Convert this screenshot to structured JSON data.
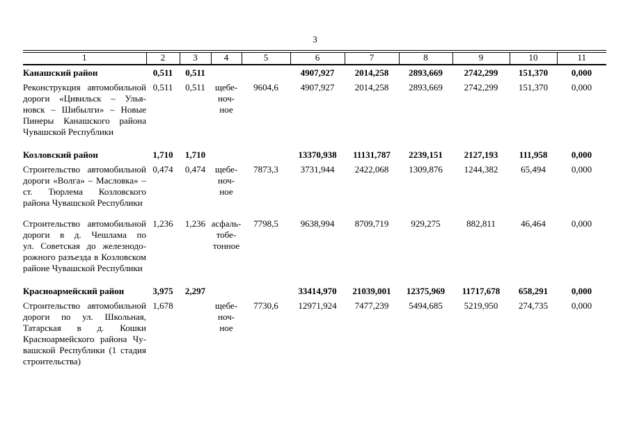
{
  "page": {
    "number": "3"
  },
  "table": {
    "columns": [
      "1",
      "2",
      "3",
      "4",
      "5",
      "6",
      "7",
      "8",
      "9",
      "10",
      "11"
    ],
    "rows": [
      {
        "type": "region",
        "blank_line_before": false,
        "name_lines": [
          "Канашский район"
        ],
        "values": [
          "0,511",
          "0,511",
          "",
          "",
          "4907,927",
          "2014,258",
          "2893,669",
          "2742,299",
          "151,370",
          "0,000"
        ]
      },
      {
        "type": "project",
        "blank_line_before": false,
        "name_lines": [
          "Реконструкция автомобильной",
          "дороги «Цивильск – Улья-",
          "новск – Шибылги» – Новые",
          "Пинеры Канашского района",
          "Чувашской Республики"
        ],
        "values": [
          "0,511",
          "0,511",
          "щебе-\nноч-\nное",
          "9604,6",
          "4907,927",
          "2014,258",
          "2893,669",
          "2742,299",
          "151,370",
          "0,000"
        ]
      },
      {
        "type": "region",
        "blank_line_before": true,
        "name_lines": [
          "Козловский район"
        ],
        "values": [
          "1,710",
          "1,710",
          "",
          "",
          "13370,938",
          "11131,787",
          "2239,151",
          "2127,193",
          "111,958",
          "0,000"
        ]
      },
      {
        "type": "project",
        "blank_line_before": false,
        "name_lines": [
          "Строительство автомобильной",
          "дороги «Волга» – Масловка» –",
          "ст. Тюрлема Козловского",
          "района Чувашской Республики"
        ],
        "values": [
          "0,474",
          "0,474",
          "щебе-\nноч-\nное",
          "7873,3",
          "3731,944",
          "2422,068",
          "1309,876",
          "1244,382",
          "65,494",
          "0,000"
        ]
      },
      {
        "type": "project",
        "blank_line_before": true,
        "name_lines": [
          "Строительство автомобильной",
          "дороги в д. Чешлама по",
          "ул. Советская до железнодо-",
          "рожного разъезда в Козловском",
          "районе Чувашской Республики"
        ],
        "values": [
          "1,236",
          "1,236",
          "асфаль-\nтобе-\nтонное",
          "7798,5",
          "9638,994",
          "8709,719",
          "929,275",
          "882,811",
          "46,464",
          "0,000"
        ]
      },
      {
        "type": "region",
        "blank_line_before": true,
        "name_lines": [
          "Красноармейский район"
        ],
        "values": [
          "3,975",
          "2,297",
          "",
          "",
          "33414,970",
          "21039,001",
          "12375,969",
          "11717,678",
          "658,291",
          "0,000"
        ]
      },
      {
        "type": "project",
        "blank_line_before": false,
        "name_lines": [
          "Строительство автомобильной",
          "дороги по ул. Школьная,",
          "Татарская в д. Кошки",
          "Красноармейского района Чу-",
          "вашской Республики (1 стадия",
          "строительства)"
        ],
        "values": [
          "1,678",
          "",
          "щебе-\nноч-\nное",
          "7730,6",
          "12971,924",
          "7477,239",
          "5494,685",
          "5219,950",
          "274,735",
          "0,000"
        ]
      }
    ]
  }
}
